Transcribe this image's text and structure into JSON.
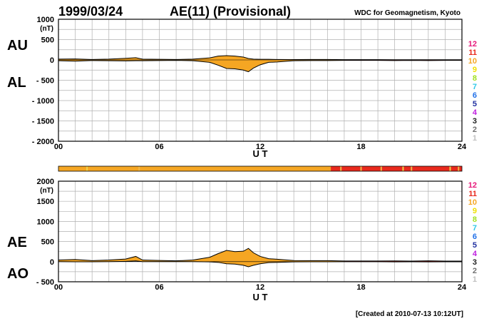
{
  "header": {
    "date": "1999/03/24",
    "title": "AE(11) (Provisional)",
    "source": "WDC for Geomagnetism, Kyoto"
  },
  "footer": {
    "created": "[Created at 2010-07-13 10:12UT]"
  },
  "chart_data": [
    {
      "type": "area",
      "name": "AU/AL",
      "left_labels": [
        "AU",
        "AL"
      ],
      "unit": "(nT)",
      "ylim": [
        -2000,
        1000
      ],
      "yticks": [
        1000,
        500,
        0,
        -500,
        -1000,
        -1500,
        -2000
      ],
      "ytick_labels": [
        "1000",
        "500",
        "0",
        "- 500",
        "- 1000",
        "- 1500",
        "- 2000"
      ],
      "xlim": [
        0,
        24
      ],
      "xticks": [
        0,
        6,
        12,
        18,
        24
      ],
      "xtick_labels": [
        "00",
        "06",
        "12",
        "18",
        "24"
      ],
      "xlabel": "U T",
      "grid": true,
      "series": [
        {
          "name": "AU",
          "x": [
            0,
            1,
            2,
            3,
            4,
            4.6,
            5,
            6,
            7,
            8,
            9,
            9.5,
            10,
            10.5,
            11,
            11.3,
            11.6,
            12,
            12.5,
            13,
            14,
            15,
            16,
            17,
            18,
            19,
            20,
            21,
            22,
            23,
            24
          ],
          "values": [
            20,
            25,
            10,
            20,
            40,
            55,
            20,
            15,
            10,
            20,
            50,
            95,
            105,
            95,
            70,
            35,
            20,
            15,
            15,
            10,
            8,
            10,
            10,
            6,
            6,
            6,
            4,
            5,
            5,
            5,
            5
          ]
        },
        {
          "name": "AL",
          "x": [
            0,
            1,
            2,
            3,
            4,
            4.6,
            5,
            6,
            7,
            8,
            9,
            9.5,
            10,
            10.5,
            11,
            11.3,
            11.6,
            12,
            12.5,
            13,
            14,
            15,
            16,
            17,
            18,
            19,
            20,
            21,
            22,
            23,
            24
          ],
          "values": [
            -20,
            -30,
            -15,
            -20,
            -25,
            -20,
            -20,
            -15,
            -10,
            -20,
            -60,
            -130,
            -210,
            -220,
            -250,
            -290,
            -200,
            -120,
            -60,
            -50,
            -20,
            -15,
            -15,
            -10,
            -10,
            -10,
            -15,
            -10,
            -15,
            -10,
            -10
          ]
        }
      ]
    },
    {
      "type": "area",
      "name": "AE/AO",
      "left_labels": [
        "AE",
        "AO"
      ],
      "unit": "(nT)",
      "ylim": [
        -500,
        2000
      ],
      "yticks": [
        2000,
        1500,
        1000,
        500,
        0,
        -500
      ],
      "ytick_labels": [
        "2000",
        "1500",
        "1000",
        "500",
        "0",
        "- 500"
      ],
      "xlim": [
        0,
        24
      ],
      "xticks": [
        0,
        6,
        12,
        18,
        24
      ],
      "xtick_labels": [
        "00",
        "06",
        "12",
        "18",
        "24"
      ],
      "xlabel": "U T",
      "grid": true,
      "series": [
        {
          "name": "AE",
          "x": [
            0,
            1,
            2,
            3,
            4,
            4.6,
            5,
            6,
            7,
            8,
            9,
            9.5,
            10,
            10.5,
            11,
            11.3,
            11.6,
            12,
            12.5,
            13,
            14,
            15,
            16,
            17,
            18,
            19,
            20,
            21,
            22,
            23,
            24
          ],
          "values": [
            40,
            55,
            25,
            40,
            65,
            130,
            40,
            30,
            20,
            40,
            110,
            200,
            280,
            250,
            260,
            330,
            220,
            130,
            75,
            60,
            28,
            25,
            25,
            16,
            16,
            16,
            19,
            15,
            20,
            15,
            15
          ]
        },
        {
          "name": "AO",
          "x": [
            0,
            1,
            2,
            3,
            4,
            4.6,
            5,
            6,
            7,
            8,
            9,
            9.5,
            10,
            10.5,
            11,
            11.3,
            11.6,
            12,
            12.5,
            13,
            14,
            15,
            16,
            17,
            18,
            19,
            20,
            21,
            22,
            23,
            24
          ],
          "values": [
            0,
            -3,
            -3,
            0,
            8,
            18,
            0,
            0,
            0,
            0,
            -5,
            -18,
            -52,
            -62,
            -90,
            -128,
            -90,
            -53,
            -23,
            -20,
            -6,
            -3,
            -3,
            -2,
            -2,
            -2,
            -6,
            -3,
            -5,
            -3,
            -3
          ]
        }
      ]
    }
  ],
  "quality_bar": {
    "xlim": [
      0,
      24
    ],
    "segments": [
      {
        "from": 0,
        "to": 16.2,
        "color": "#f5a623"
      },
      {
        "from": 16.2,
        "to": 24,
        "color": "#e8291c"
      }
    ],
    "markers": [
      {
        "at": 1.7,
        "color": "#f0d24a"
      },
      {
        "at": 4.8,
        "color": "#f0b84a"
      },
      {
        "at": 16.8,
        "color": "#f0b84a"
      },
      {
        "at": 18.0,
        "color": "#f0b84a"
      },
      {
        "at": 19.2,
        "color": "#f0b84a"
      },
      {
        "at": 20.5,
        "color": "#f0d24a"
      },
      {
        "at": 21.0,
        "color": "#f0b84a"
      },
      {
        "at": 23.3,
        "color": "#f0d24a"
      },
      {
        "at": 23.8,
        "color": "#f0b84a"
      }
    ]
  },
  "level_scale": {
    "labels": [
      "12",
      "11",
      "10",
      "9",
      "8",
      "7",
      "6",
      "5",
      "4",
      "3",
      "2",
      "1"
    ],
    "colors": [
      "#e6197a",
      "#e8291c",
      "#f5a623",
      "#f0e000",
      "#a0e020",
      "#30c8e8",
      "#2070e8",
      "#2030a0",
      "#c020e0",
      "#202020",
      "#707070",
      "#c0c0c0"
    ]
  },
  "colors": {
    "fill": "#f5a623",
    "late_fill": "#e8291c",
    "line": "#000000",
    "grid": "#b0b0b0"
  }
}
